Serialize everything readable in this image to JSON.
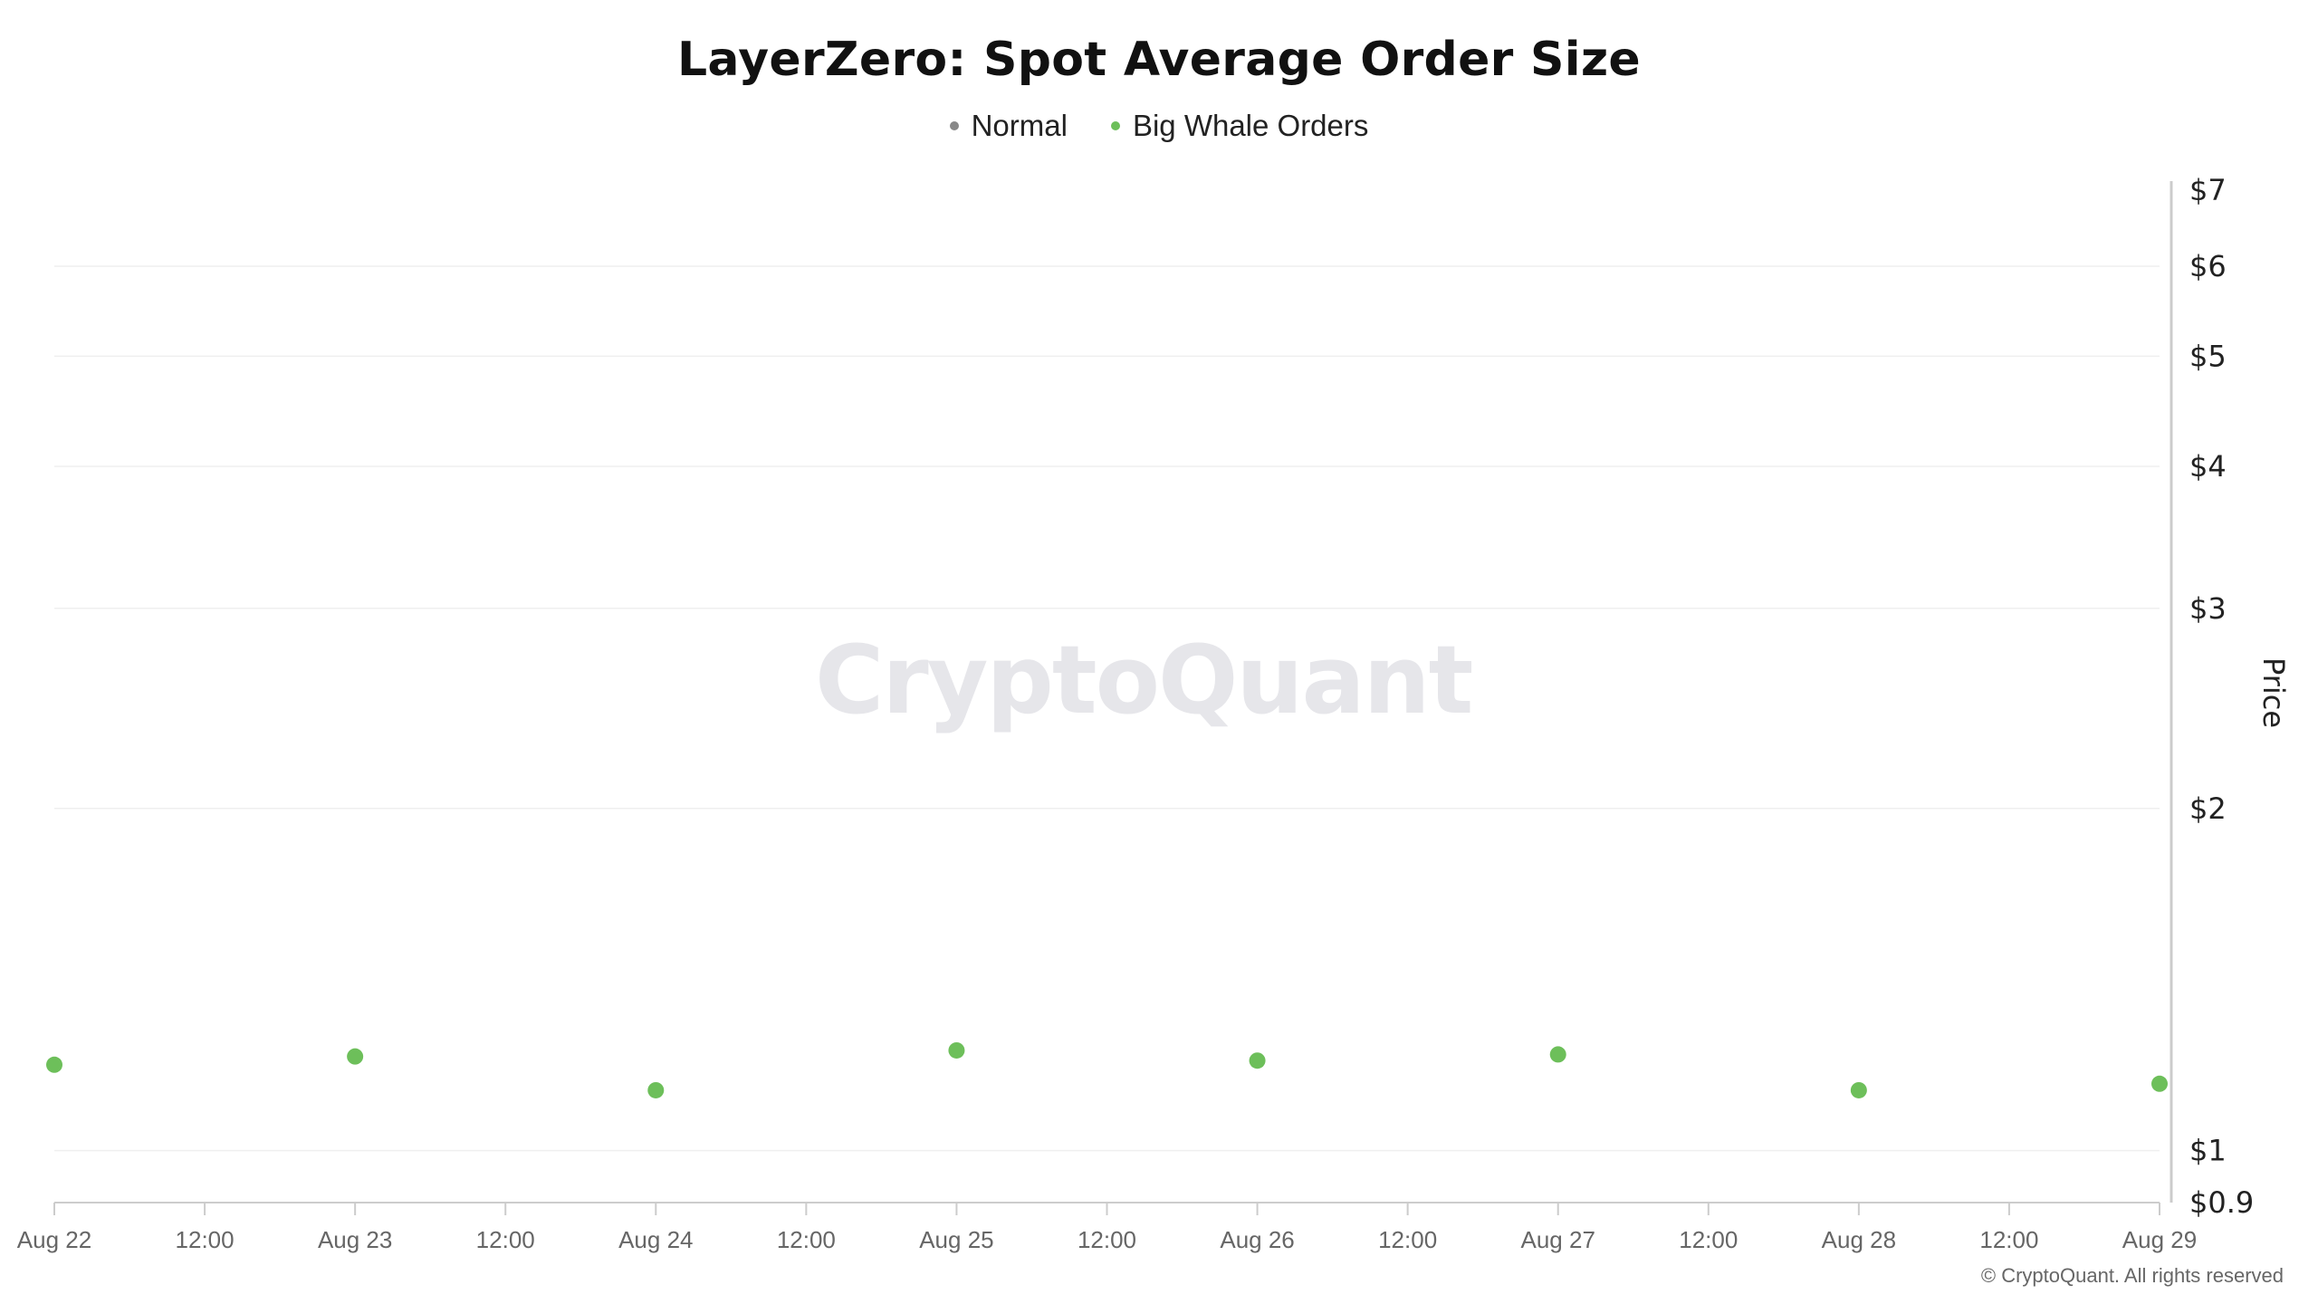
{
  "chart_data": {
    "type": "scatter",
    "title": "LayerZero: Spot Average Order Size",
    "ylabel": "Price",
    "yscale": "log",
    "ylim": [
      0.9,
      7
    ],
    "yticks": [
      {
        "value": 7,
        "label": "$7"
      },
      {
        "value": 6,
        "label": "$6"
      },
      {
        "value": 5,
        "label": "$5"
      },
      {
        "value": 4,
        "label": "$4"
      },
      {
        "value": 3,
        "label": "$3"
      },
      {
        "value": 2,
        "label": "$2"
      },
      {
        "value": 1,
        "label": "$1"
      },
      {
        "value": 0.9,
        "label": "$0.9"
      }
    ],
    "xlim": [
      "2024-08-22T00:00",
      "2024-08-29T00:00"
    ],
    "xticks": [
      "Aug 22",
      "12:00",
      "Aug 23",
      "12:00",
      "Aug 24",
      "12:00",
      "Aug 25",
      "12:00",
      "Aug 26",
      "12:00",
      "Aug 27",
      "12:00",
      "Aug 28",
      "12:00",
      "Aug 29"
    ],
    "grid": true,
    "legend_position": "top-center",
    "series": [
      {
        "name": "Normal",
        "color": "#888888",
        "x": [],
        "y": []
      },
      {
        "name": "Big Whale Orders",
        "color": "#6dbf5a",
        "x": [
          "2024-08-22",
          "2024-08-23",
          "2024-08-24",
          "2024-08-25",
          "2024-08-26",
          "2024-08-27",
          "2024-08-28",
          "2024-08-29"
        ],
        "y": [
          1.19,
          1.21,
          1.13,
          1.225,
          1.2,
          1.215,
          1.13,
          1.145
        ]
      }
    ]
  },
  "watermark": "CryptoQuant",
  "footer": "© CryptoQuant. All rights reserved"
}
